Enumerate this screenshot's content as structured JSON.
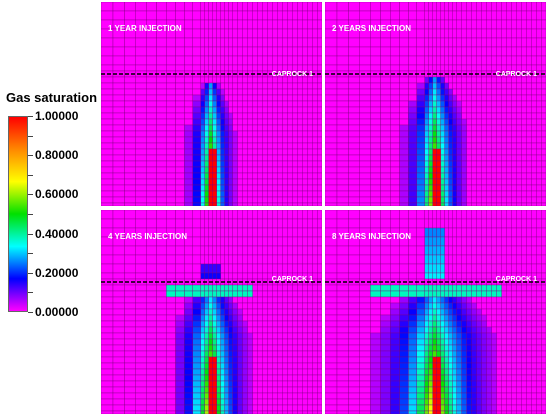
{
  "legend": {
    "title": "Gas saturation",
    "labels": [
      "1.00000",
      "0.80000",
      "0.60000",
      "0.40000",
      "0.20000",
      "0.00000"
    ],
    "label_values": [
      1.0,
      0.8,
      0.6,
      0.4,
      0.2,
      0.0
    ],
    "stops": [
      "#ff0000",
      "#ff8800",
      "#ffff00",
      "#00e000",
      "#00ffff",
      "#0000ff",
      "#ff00ff"
    ]
  },
  "panels": [
    {
      "title": "1 YEAR INJECTION",
      "caprock": "CAPROCK 1"
    },
    {
      "title": "2 YEARS INJECTION",
      "caprock": "CAPROCK 1"
    },
    {
      "title": "4 YEARS INJECTION",
      "caprock": "CAPROCK 1"
    },
    {
      "title": "8 YEARS INJECTION",
      "caprock": "CAPROCK 1"
    }
  ],
  "colors": {
    "background": "#ff00ff",
    "grid": "#7a007a",
    "caprock_line": "#000000"
  }
}
